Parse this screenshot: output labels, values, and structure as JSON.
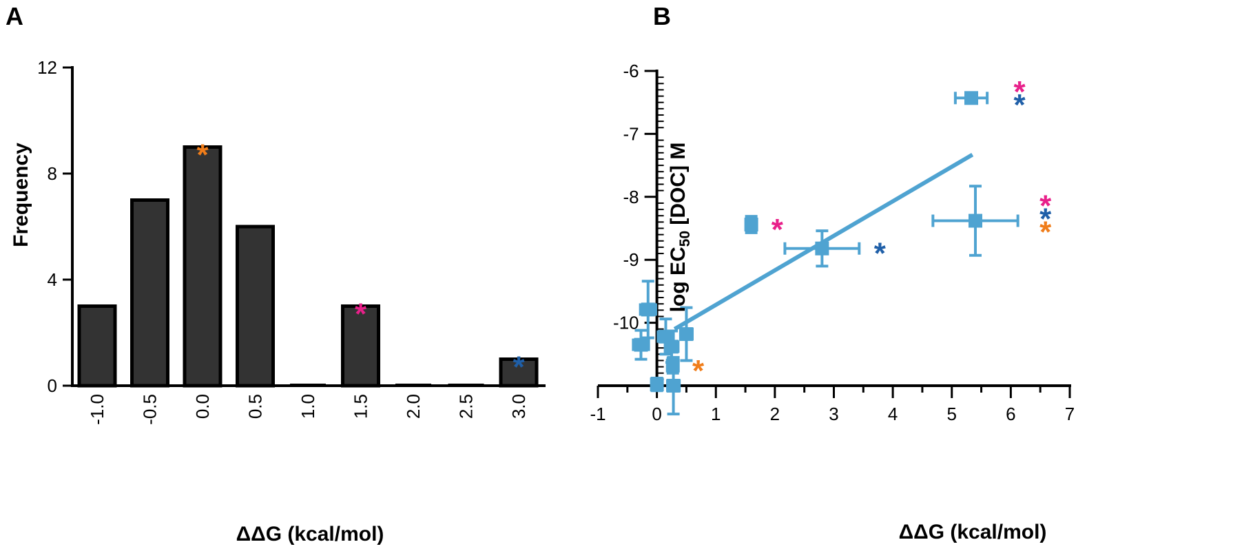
{
  "panels": {
    "a": {
      "label": "A"
    },
    "b": {
      "label": "B"
    }
  },
  "colors": {
    "bar_fill": "#333333",
    "bar_stroke": "#000000",
    "scatter": "#4fa3d1",
    "star_orange": "#f07d1a",
    "star_pink": "#e8208a",
    "star_blue": "#1f5fa8"
  },
  "chart_data": [
    {
      "type": "bar",
      "panel": "A",
      "title": "",
      "xlabel": "ΔΔG (kcal/mol)",
      "ylabel": "Frequency",
      "categories": [
        "-1.0",
        "-0.5",
        "0.0",
        "0.5",
        "1.0",
        "1.5",
        "2.0",
        "2.5",
        "3.0"
      ],
      "values": [
        3,
        7,
        9,
        6,
        0,
        3,
        0,
        0,
        1
      ],
      "ylim": [
        0,
        12
      ],
      "yticks": [
        "0",
        "4",
        "8",
        "12"
      ],
      "annotations": [
        {
          "category": "0.0",
          "text": "*",
          "color": "#f07d1a"
        },
        {
          "category": "1.5",
          "text": "*",
          "color": "#e8208a"
        },
        {
          "category": "3.0",
          "text": "*",
          "color": "#1f5fa8"
        }
      ]
    },
    {
      "type": "scatter",
      "panel": "B",
      "title": "",
      "xlabel": "ΔΔG (kcal/mol)",
      "ylabel_main": "log EC",
      "ylabel_sub": "50",
      "ylabel_rest": " [DOC] M",
      "xlim": [
        -1,
        7
      ],
      "ylim": [
        -11,
        -6
      ],
      "xticks": [
        "-1",
        "0",
        "1",
        "2",
        "3",
        "4",
        "5",
        "6",
        "7"
      ],
      "yticks": [
        "-6",
        "-7",
        "-8",
        "-9",
        "-10"
      ],
      "points": [
        {
          "x": 5.33,
          "y": -6.43,
          "xerr": 0.27,
          "yerr": 0.08,
          "stars": [
            "#e8208a",
            "#1f5fa8"
          ]
        },
        {
          "x": 5.4,
          "y": -8.38,
          "xerr": 0.72,
          "yerr": 0.55,
          "stars": [
            "#e8208a",
            "#1f5fa8",
            "#f07d1a"
          ]
        },
        {
          "x": 1.6,
          "y": -8.44,
          "xerr": 0.09,
          "yerr": 0.13,
          "stars": [
            "#e8208a"
          ]
        },
        {
          "x": 2.8,
          "y": -8.82,
          "xerr": 0.63,
          "yerr": 0.28,
          "stars": [
            "#1f5fa8"
          ]
        },
        {
          "x": -0.15,
          "y": -9.79,
          "xerr": 0.13,
          "yerr": 0.45,
          "stars": []
        },
        {
          "x": -0.27,
          "y": -10.35,
          "xerr": 0.13,
          "yerr": 0.23,
          "stars": []
        },
        {
          "x": 0.15,
          "y": -10.22,
          "xerr": 0.13,
          "yerr": 0.28,
          "stars": []
        },
        {
          "x": 0.5,
          "y": -10.18,
          "xerr": 0.1,
          "yerr": 0.42,
          "stars": []
        },
        {
          "x": 0.25,
          "y": -10.38,
          "xerr": 0.11,
          "yerr": 0.25,
          "stars": []
        },
        {
          "x": 0.27,
          "y": -10.68,
          "xerr": 0.08,
          "yerr": 0.12,
          "stars": [
            "#f07d1a"
          ]
        },
        {
          "x": 0.0,
          "y": -10.98,
          "xerr": 0.06,
          "yerr": 0.1,
          "stars": []
        },
        {
          "x": 0.28,
          "y": -11.0,
          "xerr": 0.1,
          "yerr": 0.45,
          "stars": []
        }
      ],
      "fit_line": {
        "x": [
          0.3,
          5.35
        ],
        "y": [
          -10.1,
          -7.33
        ]
      }
    }
  ]
}
